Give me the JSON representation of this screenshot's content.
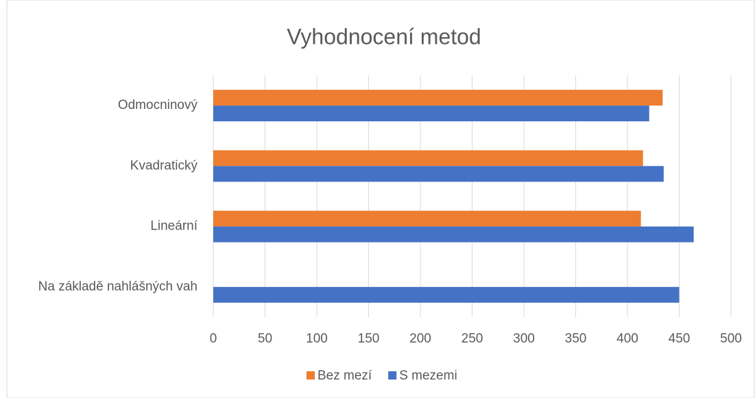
{
  "chart_data": {
    "type": "hbar",
    "title": "Vyhodnocení metod",
    "categories": [
      "Odmocninový",
      "Kvadratický",
      "Lineární",
      "Na základě nahlášných vah"
    ],
    "series": [
      {
        "name": "Bez mezí",
        "color": "#ed7d31",
        "values": [
          434,
          415,
          413,
          null
        ]
      },
      {
        "name": "S mezemi",
        "color": "#4472c4",
        "values": [
          421,
          435,
          464,
          450
        ]
      }
    ],
    "xlim": [
      0,
      500
    ],
    "xticks": [
      0,
      50,
      100,
      150,
      200,
      250,
      300,
      350,
      400,
      450,
      500
    ],
    "grid": true,
    "legend": "bottom"
  }
}
